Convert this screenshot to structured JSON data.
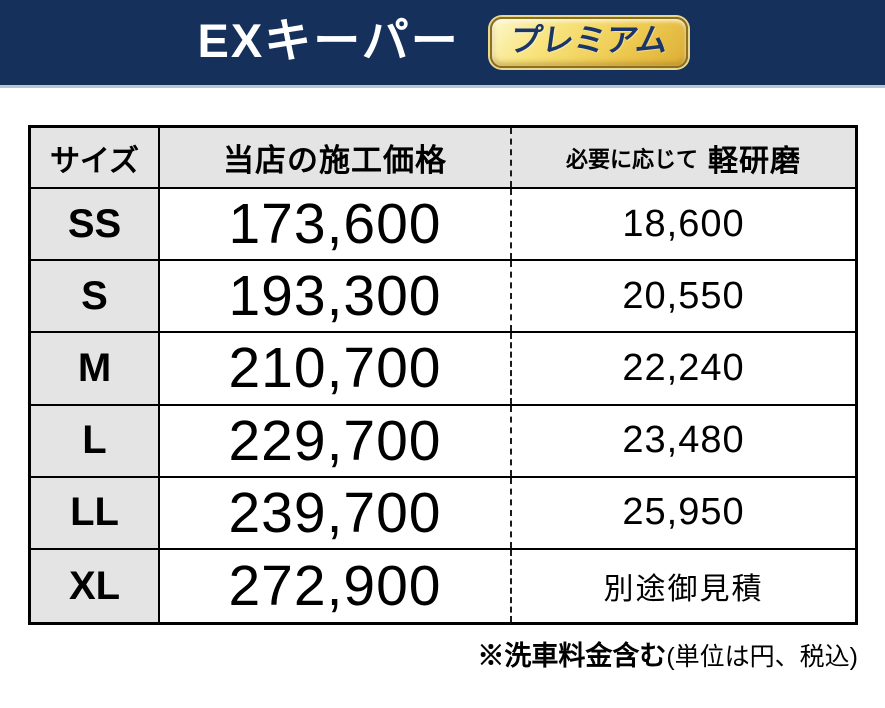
{
  "header": {
    "title": "EXキーパー",
    "badge_label": "プレミアム"
  },
  "table": {
    "columns": {
      "size": "サイズ",
      "price": "当店の施工価格",
      "polish_prefix": "必要に応じて",
      "polish_main": "軽研磨"
    },
    "rows": [
      {
        "size": "SS",
        "price": "173,600",
        "polish": "18,600"
      },
      {
        "size": "S",
        "price": "193,300",
        "polish": "20,550"
      },
      {
        "size": "M",
        "price": "210,700",
        "polish": "22,240"
      },
      {
        "size": "L",
        "price": "229,700",
        "polish": "23,480"
      },
      {
        "size": "LL",
        "price": "239,700",
        "polish": "25,950"
      },
      {
        "size": "XL",
        "price": "272,900",
        "polish": "別途御見積",
        "polish_is_text": true
      }
    ]
  },
  "footer": {
    "note_bold": "※洗車料金含む",
    "note_regular": "(単位は円、税込)"
  },
  "colors": {
    "banner_navy": "#16305c",
    "banner_edge": "#b9c5d4",
    "badge_gold": "#eecb52",
    "badge_text_navy": "#1a3569",
    "cell_gray": "#e4e4e4",
    "border_black": "#000000"
  }
}
